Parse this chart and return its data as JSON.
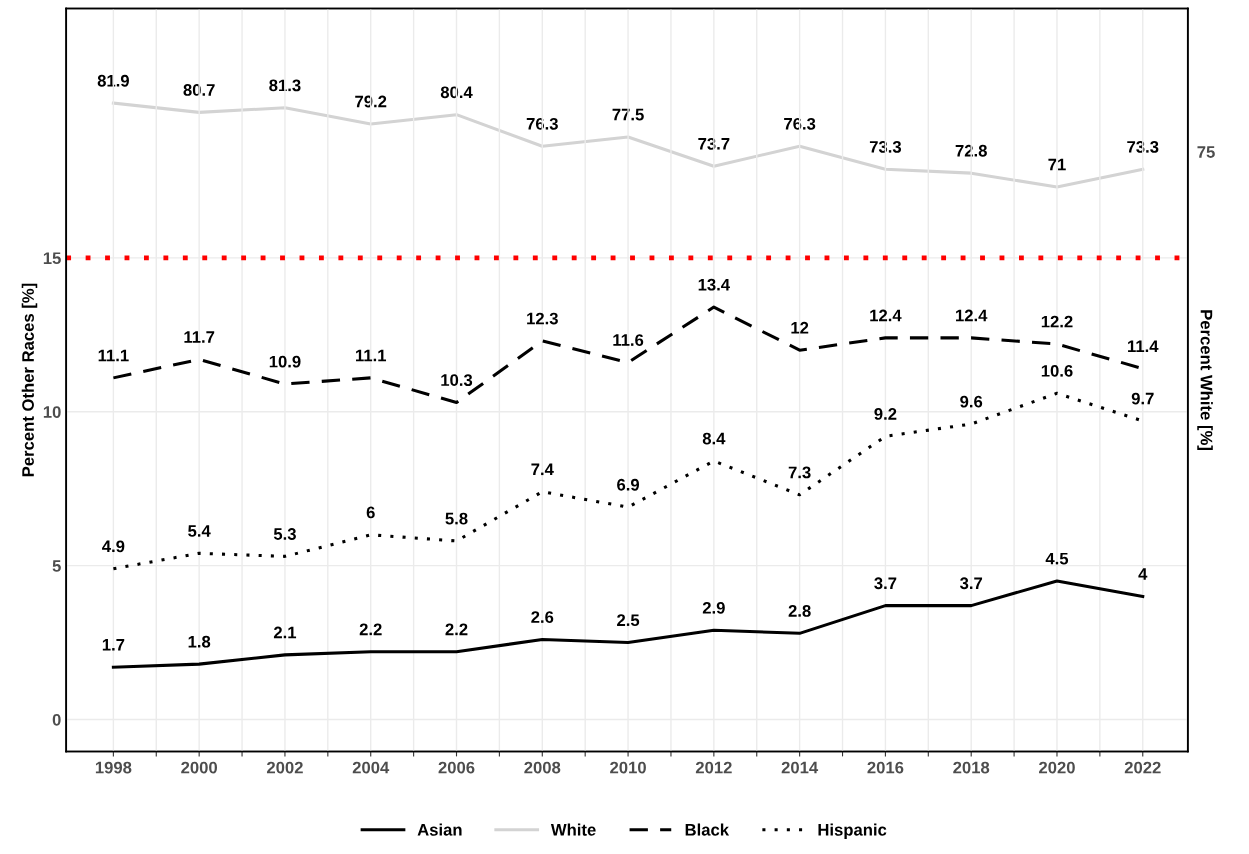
{
  "chart_data": {
    "type": "line",
    "x": [
      1998,
      2000,
      2002,
      2004,
      2006,
      2008,
      2010,
      2012,
      2014,
      2016,
      2018,
      2020,
      2022
    ],
    "series": [
      {
        "name": "Asian",
        "color": "#000000",
        "line_style": "solid",
        "values": [
          1.7,
          1.8,
          2.1,
          2.2,
          2.2,
          2.6,
          2.5,
          2.9,
          2.8,
          3.7,
          3.7,
          4.5,
          4
        ]
      },
      {
        "name": "White",
        "color": "#d3d3d3",
        "line_style": "solid",
        "axis": "y2",
        "values": [
          81.9,
          80.7,
          81.3,
          79.2,
          80.4,
          76.3,
          77.5,
          73.7,
          76.3,
          73.3,
          72.8,
          71,
          73.3
        ]
      },
      {
        "name": "Black",
        "color": "#000000",
        "line_style": "dashed",
        "values": [
          11.1,
          11.7,
          10.9,
          11.1,
          10.3,
          12.3,
          11.6,
          13.4,
          12,
          12.4,
          12.4,
          12.2,
          11.4
        ]
      },
      {
        "name": "Hispanic",
        "color": "#000000",
        "line_style": "dotted",
        "values": [
          4.9,
          5.4,
          5.3,
          6,
          5.8,
          7.4,
          6.9,
          8.4,
          7.3,
          9.2,
          9.6,
          10.6,
          9.7
        ]
      }
    ],
    "ylabel": "Percent Other Races [%]",
    "y2label": "Percent White [%]",
    "xlim": [
      1996.9,
      2023.05
    ],
    "ylim": [
      -1.04,
      23.1
    ],
    "y2lim": [
      -2.4,
      94.2
    ],
    "xticks": [
      {
        "value": 1998,
        "label": "1998"
      },
      {
        "value": 1999,
        "label": null
      },
      {
        "value": 2000,
        "label": "2000"
      },
      {
        "value": 2001,
        "label": null
      },
      {
        "value": 2002,
        "label": "2002"
      },
      {
        "value": 2003,
        "label": null
      },
      {
        "value": 2004,
        "label": "2004"
      },
      {
        "value": 2005,
        "label": null
      },
      {
        "value": 2006,
        "label": "2006"
      },
      {
        "value": 2007,
        "label": null
      },
      {
        "value": 2008,
        "label": "2008"
      },
      {
        "value": 2009,
        "label": null
      },
      {
        "value": 2010,
        "label": "2010"
      },
      {
        "value": 2011,
        "label": null
      },
      {
        "value": 2012,
        "label": "2012"
      },
      {
        "value": 2013,
        "label": null
      },
      {
        "value": 2014,
        "label": "2014"
      },
      {
        "value": 2015,
        "label": null
      },
      {
        "value": 2016,
        "label": "2016"
      },
      {
        "value": 2017,
        "label": null
      },
      {
        "value": 2018,
        "label": "2018"
      },
      {
        "value": 2019,
        "label": null
      },
      {
        "value": 2020,
        "label": "2020"
      },
      {
        "value": 2021,
        "label": null
      },
      {
        "value": 2022,
        "label": "2022"
      }
    ],
    "yticks": [
      0,
      5,
      10,
      15
    ],
    "annotations": [
      "75"
    ],
    "ref_lines": [
      {
        "axis": "y",
        "value": 15,
        "color": "#ff0000",
        "line_style": "dotted"
      }
    ],
    "grid": true,
    "legend": "bottom",
    "data_labels": true
  }
}
